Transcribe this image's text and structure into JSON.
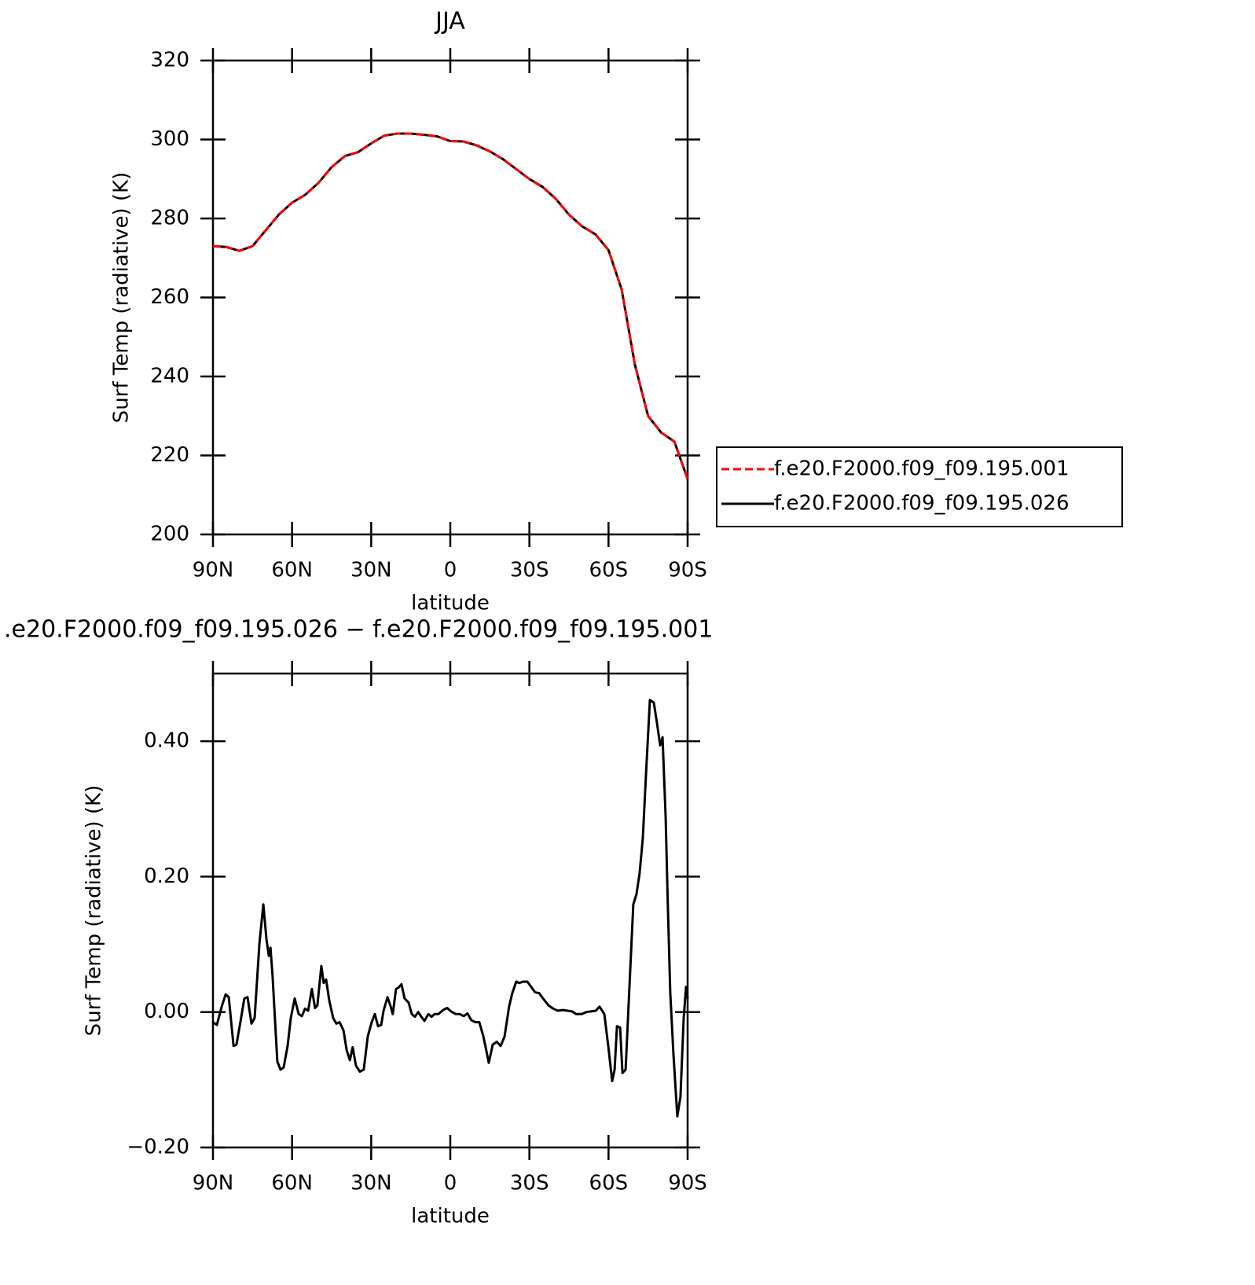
{
  "chart_data": [
    {
      "type": "line",
      "title": "JJA",
      "xlabel": "latitude",
      "ylabel": "Surf Temp (radiative) (K)",
      "xlim": [
        90,
        -90
      ],
      "ylim": [
        200,
        320
      ],
      "xticks": [
        {
          "value": 90,
          "label": "90N"
        },
        {
          "value": 60,
          "label": "60N"
        },
        {
          "value": 30,
          "label": "30N"
        },
        0,
        {
          "value": -30,
          "label": "30S"
        },
        {
          "value": -60,
          "label": "60S"
        },
        {
          "value": -90,
          "label": "90S"
        }
      ],
      "yticks": [
        200,
        220,
        240,
        260,
        280,
        300,
        320
      ],
      "legend": "right",
      "x": [
        90,
        85,
        80,
        75,
        70,
        65,
        60,
        55,
        50,
        45,
        40,
        35,
        30,
        25,
        20,
        15,
        10,
        5,
        0,
        -5,
        -10,
        -15,
        -20,
        -25,
        -30,
        -35,
        -40,
        -45,
        -50,
        -55,
        -60,
        -65,
        -70,
        -75,
        -80,
        -85,
        -90
      ],
      "series": [
        {
          "name": "f.e20.F2000.f09_f09.195.001",
          "color": "#ff0000",
          "dashed": true,
          "values": [
            273,
            272.8,
            271.8,
            273,
            277,
            281,
            284,
            286,
            289,
            293,
            295.8,
            296.8,
            299,
            301,
            301.5,
            301.5,
            301.2,
            300.8,
            299.6,
            299.5,
            298.5,
            297,
            295,
            292.5,
            290,
            288,
            285,
            281,
            278,
            276,
            272,
            262,
            243,
            230,
            225.8,
            223.5,
            214
          ]
        },
        {
          "name": "f.e20.F2000.f09_f09.195.026",
          "color": "#000000",
          "dashed": false,
          "values": [
            273,
            272.8,
            271.8,
            273,
            277,
            281,
            284,
            286,
            289,
            293,
            295.8,
            296.8,
            299,
            301,
            301.5,
            301.5,
            301.2,
            300.8,
            299.6,
            299.5,
            298.5,
            297,
            295,
            292.5,
            290,
            288,
            285,
            281,
            278,
            276,
            272,
            262,
            243,
            230,
            225.8,
            223.5,
            214
          ]
        }
      ]
    },
    {
      "type": "line",
      "title": ".e20.F2000.f09_f09.195.026 − f.e20.F2000.f09_f09.195.001",
      "xlabel": "latitude",
      "ylabel": "Surf Temp (radiative) (K)",
      "xlim": [
        90,
        -90
      ],
      "ylim": [
        -0.2,
        0.5
      ],
      "xticks": [
        {
          "value": 90,
          "label": "90N"
        },
        {
          "value": 60,
          "label": "60N"
        },
        {
          "value": 30,
          "label": "30N"
        },
        0,
        {
          "value": -30,
          "label": "30S"
        },
        {
          "value": -60,
          "label": "60S"
        },
        {
          "value": -90,
          "label": "90S"
        }
      ],
      "yticks": [
        {
          "value": -0.2,
          "label": "−0.20"
        },
        {
          "value": 0,
          "label": "0.00"
        },
        {
          "value": 0.2,
          "label": "0.20"
        },
        {
          "value": 0.4,
          "label": "0.40"
        }
      ],
      "x": [
        90.0,
        88.5,
        86.7,
        85.2,
        84.0,
        82.2,
        81.1,
        79.6,
        78.1,
        76.9,
        75.4,
        74.2,
        72.4,
        70.9,
        69.7,
        68.8,
        68.2,
        67.4,
        65.6,
        64.4,
        63.2,
        61.7,
        60.5,
        59.0,
        57.5,
        56.3,
        55.1,
        53.9,
        52.5,
        51.3,
        50.4,
        48.9,
        48.0,
        47.1,
        45.9,
        44.4,
        43.2,
        42.0,
        40.5,
        39.3,
        38.1,
        37.0,
        35.8,
        34.3,
        32.8,
        31.3,
        29.8,
        28.6,
        27.4,
        26.2,
        25.3,
        23.8,
        22.6,
        21.8,
        20.6,
        19.7,
        18.5,
        17.3,
        15.8,
        14.6,
        13.4,
        12.2,
        11.0,
        9.8,
        8.3,
        7.1,
        6.0,
        4.5,
        2.7,
        1.2,
        -0.3,
        -2.1,
        -3.6,
        -5.1,
        -6.5,
        -8.0,
        -9.5,
        -11.0,
        -12.5,
        -13.4,
        -14.6,
        -16.1,
        -17.6,
        -19.1,
        -20.6,
        -22.3,
        -23.5,
        -25.0,
        -26.2,
        -27.7,
        -29.2,
        -30.7,
        -32.2,
        -33.7,
        -35.2,
        -37.2,
        -39.0,
        -40.8,
        -42.6,
        -44.4,
        -46.2,
        -47.7,
        -49.8,
        -51.6,
        -53.4,
        -55.2,
        -56.6,
        -58.4,
        -59.9,
        -61.4,
        -62.3,
        -63.2,
        -64.4,
        -65.3,
        -66.5,
        -68.0,
        -69.4,
        -70.6,
        -71.8,
        -73.0,
        -74.2,
        -75.7,
        -77.2,
        -78.4,
        -79.6,
        -80.5,
        -81.7,
        -82.5,
        -83.4,
        -84.6,
        -86.1,
        -87.3,
        -88.5,
        -89.4,
        -90.0
      ],
      "series": [
        {
          "name": "f.e20.F2000.f09_f09.195.026 − f.e20.F2000.f09_f09.195.001",
          "color": "#000000",
          "dashed": false,
          "values": [
            -0.015,
            -0.019,
            0.008,
            0.026,
            0.022,
            -0.05,
            -0.048,
            -0.015,
            0.02,
            0.022,
            -0.017,
            -0.009,
            0.101,
            0.159,
            0.107,
            0.083,
            0.095,
            0.054,
            -0.073,
            -0.085,
            -0.082,
            -0.05,
            -0.009,
            0.02,
            -0.003,
            -0.006,
            0.005,
            0.002,
            0.034,
            0.006,
            0.01,
            0.068,
            0.043,
            0.048,
            0.017,
            -0.009,
            -0.017,
            -0.015,
            -0.027,
            -0.056,
            -0.071,
            -0.052,
            -0.079,
            -0.088,
            -0.085,
            -0.036,
            -0.015,
            -0.003,
            -0.021,
            -0.019,
            0.002,
            0.022,
            0.008,
            -0.003,
            0.034,
            0.036,
            0.041,
            0.02,
            0.014,
            -0.003,
            -0.007,
            0.0,
            -0.007,
            -0.013,
            -0.003,
            -0.007,
            -0.003,
            -0.003,
            0.003,
            0.006,
            0.001,
            -0.003,
            -0.003,
            -0.006,
            -0.002,
            -0.012,
            -0.015,
            -0.015,
            -0.035,
            -0.052,
            -0.075,
            -0.048,
            -0.044,
            -0.05,
            -0.036,
            0.008,
            0.028,
            0.045,
            0.043,
            0.045,
            0.045,
            0.037,
            0.029,
            0.028,
            0.02,
            0.01,
            0.005,
            0.002,
            0.003,
            0.002,
            0.001,
            -0.003,
            -0.003,
            0.0,
            0.001,
            0.002,
            0.008,
            -0.003,
            -0.05,
            -0.102,
            -0.085,
            -0.021,
            -0.023,
            -0.09,
            -0.085,
            0.043,
            0.159,
            0.174,
            0.205,
            0.257,
            0.35,
            0.461,
            0.457,
            0.426,
            0.394,
            0.406,
            0.286,
            0.159,
            0.029,
            -0.061,
            -0.154,
            -0.125,
            -0.009,
            0.037,
            0.02
          ]
        }
      ]
    }
  ]
}
